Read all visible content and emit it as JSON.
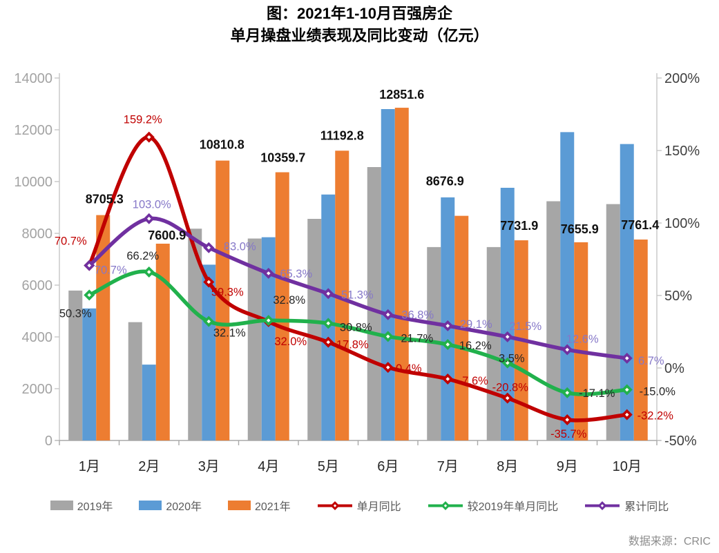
{
  "title": {
    "line1": "图：2021年1-10月百强房企",
    "line2": "单月操盘业绩表现及同比变动（亿元）"
  },
  "source": "数据来源：CRIC",
  "legend": {
    "position": "bottom",
    "items": [
      {
        "label": "2019年",
        "type": "bar",
        "color": "#a6a6a6"
      },
      {
        "label": "2020年",
        "type": "bar",
        "color": "#5b9bd5"
      },
      {
        "label": "2021年",
        "type": "bar",
        "color": "#ed7d31"
      },
      {
        "label": "单月同比",
        "type": "line",
        "color": "#c00000"
      },
      {
        "label": "较2019年单月同比",
        "type": "line",
        "color": "#21b14c"
      },
      {
        "label": "累计同比",
        "type": "line",
        "color": "#7030a0"
      }
    ]
  },
  "chart_data": {
    "type": "combo-bar-line",
    "grid": "off",
    "categories": [
      "1月",
      "2月",
      "3月",
      "4月",
      "5月",
      "6月",
      "7月",
      "8月",
      "9月",
      "10月"
    ],
    "left_axis": {
      "min": 0,
      "max": 14000,
      "step": 2000,
      "tick_labels": [
        "0",
        "2000",
        "4000",
        "6000",
        "8000",
        "10000",
        "12000",
        "14000"
      ]
    },
    "right_axis": {
      "min": -50,
      "max": 200,
      "step": 50,
      "tick_labels": [
        "-50%",
        "0%",
        "50%",
        "100%",
        "150%",
        "200%"
      ]
    },
    "series": [
      {
        "name": "2019年",
        "type": "bar",
        "color": "#a6a6a6",
        "values": [
          5790,
          4570,
          8180,
          7800,
          8560,
          10560,
          7470,
          7470,
          9240,
          9130
        ]
      },
      {
        "name": "2020年",
        "type": "bar",
        "color": "#5b9bd5",
        "values": [
          5100,
          2930,
          6790,
          7850,
          9500,
          12800,
          9390,
          9760,
          11910,
          11450
        ]
      },
      {
        "name": "2021年",
        "type": "bar",
        "color": "#ed7d31",
        "values": [
          8705.3,
          7600.9,
          10810.8,
          10359.7,
          11192.8,
          12851.6,
          8676.9,
          7731.9,
          7655.9,
          7761.4
        ],
        "labels": [
          "8705.3",
          "7600.9",
          "10810.8",
          "10359.7",
          "11192.8",
          "12851.6",
          "8676.9",
          "7731.9",
          "7655.9",
          "7761.4"
        ]
      },
      {
        "name": "单月同比",
        "type": "line",
        "axis": "right",
        "color": "#c00000",
        "label_color": "#c00000",
        "values": [
          70.7,
          159.2,
          59.3,
          32.0,
          17.8,
          0.4,
          -7.6,
          -20.8,
          -35.7,
          -32.2
        ],
        "labels": [
          "70.7%",
          "159.2%",
          "59.3%",
          "32.0%",
          "17.8%",
          "0.4%",
          "-7.6%",
          "-20.8%",
          "-35.7%",
          "-32.2%"
        ]
      },
      {
        "name": "较2019年单月同比",
        "type": "line",
        "axis": "right",
        "color": "#21b14c",
        "label_color": "#262626",
        "values": [
          50.3,
          66.2,
          32.1,
          32.8,
          30.8,
          21.7,
          16.2,
          3.5,
          -17.1,
          -15.0
        ],
        "labels": [
          "50.3%",
          "66.2%",
          "32.1%",
          "32.8%",
          "30.8%",
          "21.7%",
          "16.2%",
          "3.5%",
          "-17.1%",
          "-15.0%"
        ]
      },
      {
        "name": "累计同比",
        "type": "line",
        "axis": "right",
        "color": "#7030a0",
        "label_color": "#8678c8",
        "values": [
          70.7,
          103.0,
          83.0,
          65.3,
          51.3,
          36.8,
          29.1,
          21.5,
          12.6,
          6.7
        ],
        "labels": [
          "70.7%",
          "103.0%",
          "83.0%",
          "65.3%",
          "51.3%",
          "36.8%",
          "29.1%",
          "21.5%",
          "12.6%",
          "6.7%"
        ]
      }
    ]
  }
}
